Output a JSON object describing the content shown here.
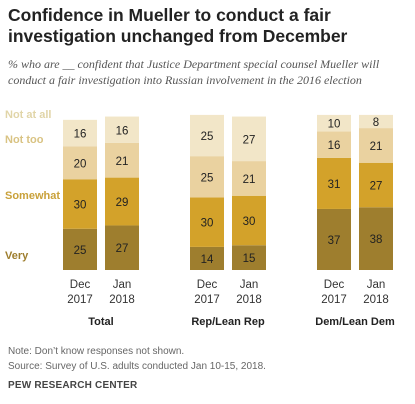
{
  "title": "Confidence in Mueller to conduct a fair investigation unchanged  from December",
  "subtitle": "% who are __ confident that Justice Department special counsel Mueller will conduct a fair investigation into Russian involvement in the 2016 election",
  "note": "Note: Don’t know responses not shown.",
  "source": "Source: Survey of U.S. adults conducted Jan 10-15, 2018.",
  "source_name": "PEW RESEARCH CENTER",
  "chart_data": {
    "type": "bar",
    "stacked": true,
    "category_order": [
      "Very",
      "Somewhat",
      "Not too",
      "Not at all"
    ],
    "legend": [
      "Not at all",
      "Not too",
      "Somewhat",
      "Very"
    ],
    "colors": {
      "Very": "#9e7e2e",
      "Somewhat": "#d3a22a",
      "Not too": "#ead2a0",
      "Not at all": "#f2e6c8",
      "legend_Very": "#9e7e2e",
      "legend_Somewhat": "#c9a13a",
      "legend_Not too": "#d9c383",
      "legend_Not at all": "#e1d5a8"
    },
    "groups": [
      {
        "name": "Total",
        "bars": [
          {
            "label": [
              "Dec",
              "2017"
            ],
            "values": {
              "Very": 25,
              "Somewhat": 30,
              "Not too": 20,
              "Not at all": 16
            }
          },
          {
            "label": [
              "Jan",
              "2018"
            ],
            "values": {
              "Very": 27,
              "Somewhat": 29,
              "Not too": 21,
              "Not at all": 16
            }
          }
        ]
      },
      {
        "name": "Rep/Lean Rep",
        "bars": [
          {
            "label": [
              "Dec",
              "2017"
            ],
            "values": {
              "Very": 14,
              "Somewhat": 30,
              "Not too": 25,
              "Not at all": 25
            }
          },
          {
            "label": [
              "Jan",
              "2018"
            ],
            "values": {
              "Very": 15,
              "Somewhat": 30,
              "Not too": 21,
              "Not at all": 27
            }
          }
        ]
      },
      {
        "name": "Dem/Lean Dem",
        "bars": [
          {
            "label": [
              "Dec",
              "2017"
            ],
            "values": {
              "Very": 37,
              "Somewhat": 31,
              "Not too": 16,
              "Not at all": 10
            }
          },
          {
            "label": [
              "Jan",
              "2018"
            ],
            "values": {
              "Very": 38,
              "Somewhat": 27,
              "Not too": 21,
              "Not at all": 8
            }
          }
        ]
      }
    ],
    "ylim": [
      0,
      100
    ]
  }
}
